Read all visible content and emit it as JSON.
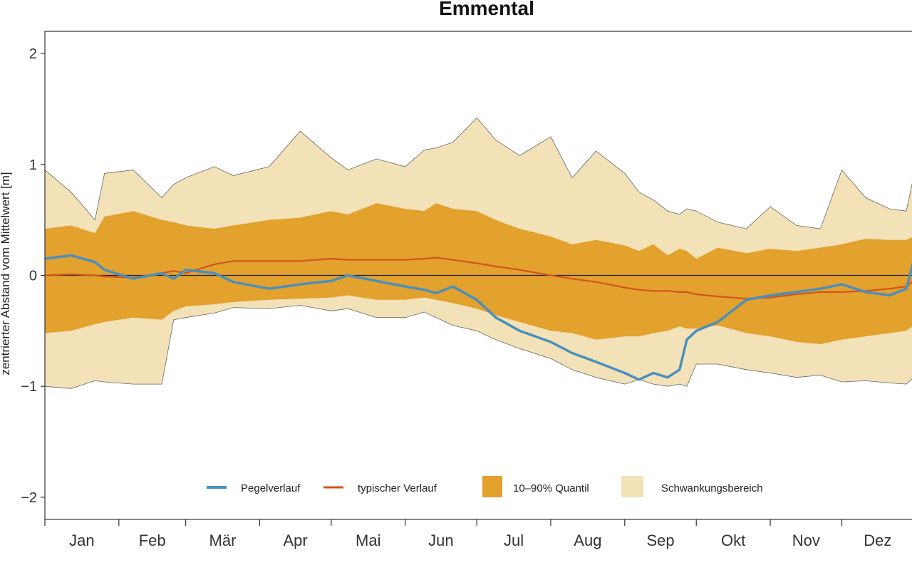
{
  "chart_data": {
    "type": "area",
    "title": "Emmental",
    "ylabel": "zentrierter Abstand vom Mittelwert [m]",
    "xlabel": "",
    "ylim": [
      -2.2,
      2.2
    ],
    "yticks": [
      -2,
      -1,
      0,
      1,
      2
    ],
    "ytick_labels": [
      "−2",
      "−1",
      "0",
      "1",
      "2"
    ],
    "months": [
      "Jan",
      "Feb",
      "Mär",
      "Apr",
      "Mai",
      "Jun",
      "Jul",
      "Aug",
      "Sep",
      "Okt",
      "Nov",
      "Dez"
    ],
    "x_unit": "day of year",
    "zero_line": true,
    "legend": {
      "placement": "bottom-center",
      "entries": [
        "Pegelverlauf",
        "typischer Verlauf",
        "10–90% Quantil",
        "Schwankungsbereich"
      ]
    },
    "colors": {
      "pegel": "#4a8fbd",
      "typisch": "#d2541c",
      "quantile": "#e3a12d",
      "range": "#f3e2b8",
      "range_outline": "#666666"
    },
    "x": [
      1,
      12,
      22,
      26,
      38,
      50,
      55,
      60,
      72,
      80,
      95,
      108,
      121,
      128,
      140,
      152,
      160,
      165,
      172,
      182,
      190,
      200,
      213,
      222,
      232,
      244,
      250,
      256,
      262,
      267,
      270,
      274,
      283,
      295,
      305,
      316,
      326,
      335,
      345,
      355,
      362,
      365
    ],
    "series": [
      {
        "name": "Schwankungsbereich",
        "kind": "band",
        "upper": [
          0.95,
          0.75,
          0.5,
          0.92,
          0.95,
          0.7,
          0.82,
          0.88,
          0.98,
          0.9,
          0.98,
          1.3,
          1.06,
          0.95,
          1.05,
          0.98,
          1.13,
          1.15,
          1.2,
          1.42,
          1.22,
          1.08,
          1.25,
          0.88,
          1.12,
          0.92,
          0.75,
          0.68,
          0.58,
          0.55,
          0.6,
          0.58,
          0.48,
          0.42,
          0.62,
          0.45,
          0.42,
          0.95,
          0.7,
          0.6,
          0.58,
          0.88
        ],
        "lower": [
          -1.0,
          -1.02,
          -0.95,
          -0.96,
          -0.98,
          -0.98,
          -0.4,
          -0.38,
          -0.34,
          -0.29,
          -0.3,
          -0.27,
          -0.32,
          -0.3,
          -0.38,
          -0.38,
          -0.33,
          -0.38,
          -0.45,
          -0.5,
          -0.58,
          -0.66,
          -0.75,
          -0.85,
          -0.92,
          -0.98,
          -0.94,
          -0.98,
          -1.0,
          -0.98,
          -1.0,
          -0.8,
          -0.8,
          -0.85,
          -0.88,
          -0.92,
          -0.9,
          -0.96,
          -0.95,
          -0.97,
          -0.98,
          -0.92
        ]
      },
      {
        "name": "10–90% Quantil",
        "kind": "band",
        "upper": [
          0.42,
          0.45,
          0.38,
          0.53,
          0.58,
          0.5,
          0.48,
          0.45,
          0.42,
          0.45,
          0.5,
          0.52,
          0.58,
          0.55,
          0.65,
          0.6,
          0.58,
          0.65,
          0.6,
          0.58,
          0.5,
          0.42,
          0.35,
          0.28,
          0.32,
          0.27,
          0.22,
          0.28,
          0.18,
          0.24,
          0.22,
          0.15,
          0.25,
          0.2,
          0.24,
          0.22,
          0.25,
          0.28,
          0.33,
          0.32,
          0.32,
          0.35
        ],
        "lower": [
          -0.52,
          -0.5,
          -0.44,
          -0.42,
          -0.38,
          -0.4,
          -0.32,
          -0.28,
          -0.26,
          -0.24,
          -0.22,
          -0.21,
          -0.2,
          -0.18,
          -0.22,
          -0.22,
          -0.2,
          -0.22,
          -0.25,
          -0.3,
          -0.36,
          -0.42,
          -0.5,
          -0.52,
          -0.58,
          -0.55,
          -0.55,
          -0.52,
          -0.5,
          -0.46,
          -0.48,
          -0.48,
          -0.45,
          -0.52,
          -0.55,
          -0.6,
          -0.62,
          -0.58,
          -0.55,
          -0.52,
          -0.5,
          -0.45
        ]
      },
      {
        "name": "typischer Verlauf",
        "kind": "line",
        "values": [
          0.0,
          0.01,
          0.0,
          -0.01,
          -0.02,
          0.02,
          0.04,
          0.02,
          0.1,
          0.13,
          0.13,
          0.13,
          0.15,
          0.14,
          0.14,
          0.14,
          0.15,
          0.16,
          0.14,
          0.11,
          0.08,
          0.05,
          0.0,
          -0.03,
          -0.06,
          -0.11,
          -0.13,
          -0.14,
          -0.14,
          -0.15,
          -0.15,
          -0.17,
          -0.19,
          -0.21,
          -0.2,
          -0.17,
          -0.15,
          -0.15,
          -0.14,
          -0.12,
          -0.1,
          -0.05
        ]
      },
      {
        "name": "Pegelverlauf",
        "kind": "line",
        "values": [
          0.15,
          0.18,
          0.12,
          0.05,
          -0.03,
          0.02,
          -0.03,
          0.05,
          0.02,
          -0.06,
          -0.12,
          -0.08,
          -0.05,
          0.0,
          -0.05,
          -0.1,
          -0.13,
          -0.16,
          -0.1,
          -0.22,
          -0.38,
          -0.5,
          -0.6,
          -0.7,
          -0.78,
          -0.88,
          -0.94,
          -0.88,
          -0.92,
          -0.85,
          -0.58,
          -0.5,
          -0.42,
          -0.22,
          -0.18,
          -0.15,
          -0.12,
          -0.08,
          -0.15,
          -0.18,
          -0.12,
          0.12
        ]
      }
    ]
  }
}
